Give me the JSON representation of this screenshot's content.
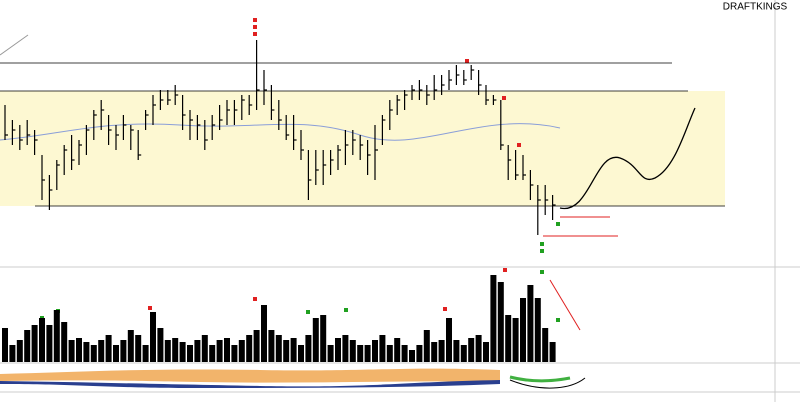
{
  "chart_data": {
    "type": "ohlc",
    "title": "DRAFTKINGS",
    "high": [
      195,
      180,
      175,
      180,
      170,
      145,
      125,
      140,
      155,
      165,
      160,
      175,
      190,
      200,
      185,
      175,
      185,
      175,
      170,
      190,
      205,
      210,
      210,
      215,
      205,
      190,
      185,
      180,
      185,
      195,
      200,
      200,
      205,
      205,
      260,
      230,
      215,
      200,
      185,
      185,
      170,
      150,
      150,
      150,
      150,
      155,
      170,
      170,
      165,
      160,
      175,
      185,
      200,
      205,
      210,
      215,
      220,
      215,
      225,
      225,
      230,
      235,
      230,
      235,
      230,
      215,
      205,
      200,
      155,
      150,
      145,
      130,
      115,
      115,
      105
    ],
    "low": [
      160,
      155,
      150,
      155,
      145,
      100,
      90,
      110,
      125,
      130,
      135,
      145,
      160,
      170,
      155,
      150,
      160,
      150,
      140,
      170,
      175,
      190,
      195,
      195,
      170,
      160,
      160,
      150,
      160,
      170,
      175,
      175,
      180,
      185,
      190,
      195,
      180,
      170,
      160,
      150,
      140,
      100,
      115,
      115,
      125,
      130,
      135,
      145,
      140,
      125,
      120,
      155,
      170,
      185,
      190,
      200,
      200,
      195,
      200,
      205,
      210,
      215,
      215,
      220,
      205,
      195,
      195,
      150,
      120,
      120,
      120,
      100,
      65,
      85,
      80
    ],
    "close": [
      165,
      170,
      160,
      165,
      160,
      120,
      110,
      135,
      150,
      140,
      155,
      170,
      185,
      190,
      170,
      165,
      175,
      170,
      145,
      185,
      195,
      200,
      200,
      205,
      185,
      180,
      175,
      160,
      175,
      180,
      190,
      190,
      200,
      195,
      210,
      210,
      190,
      180,
      165,
      160,
      150,
      120,
      130,
      135,
      140,
      150,
      155,
      160,
      155,
      145,
      150,
      180,
      190,
      200,
      205,
      210,
      210,
      205,
      210,
      215,
      220,
      225,
      220,
      230,
      215,
      200,
      200,
      155,
      140,
      125,
      125,
      115,
      100,
      100,
      95
    ],
    "color": "#000000",
    "ylim": [
      35,
      300
    ],
    "levels": [
      237,
      209,
      94
    ],
    "volume": {
      "values": [
        34,
        17,
        22,
        32,
        37,
        44,
        37,
        52,
        40,
        22,
        24,
        20,
        17,
        22,
        27,
        17,
        22,
        32,
        27,
        17,
        50,
        34,
        22,
        24,
        20,
        17,
        22,
        27,
        17,
        22,
        24,
        17,
        22,
        27,
        32,
        57,
        32,
        27,
        22,
        24,
        17,
        27,
        44,
        47,
        17,
        24,
        27,
        22,
        17,
        17,
        22,
        27,
        17,
        24,
        17,
        12,
        17,
        32,
        20,
        22,
        44,
        22,
        17,
        24,
        27,
        20,
        87,
        80,
        47,
        44,
        64,
        77,
        64,
        34,
        20
      ],
      "color": "#000000",
      "ylim": [
        0,
        94
      ]
    }
  }
}
